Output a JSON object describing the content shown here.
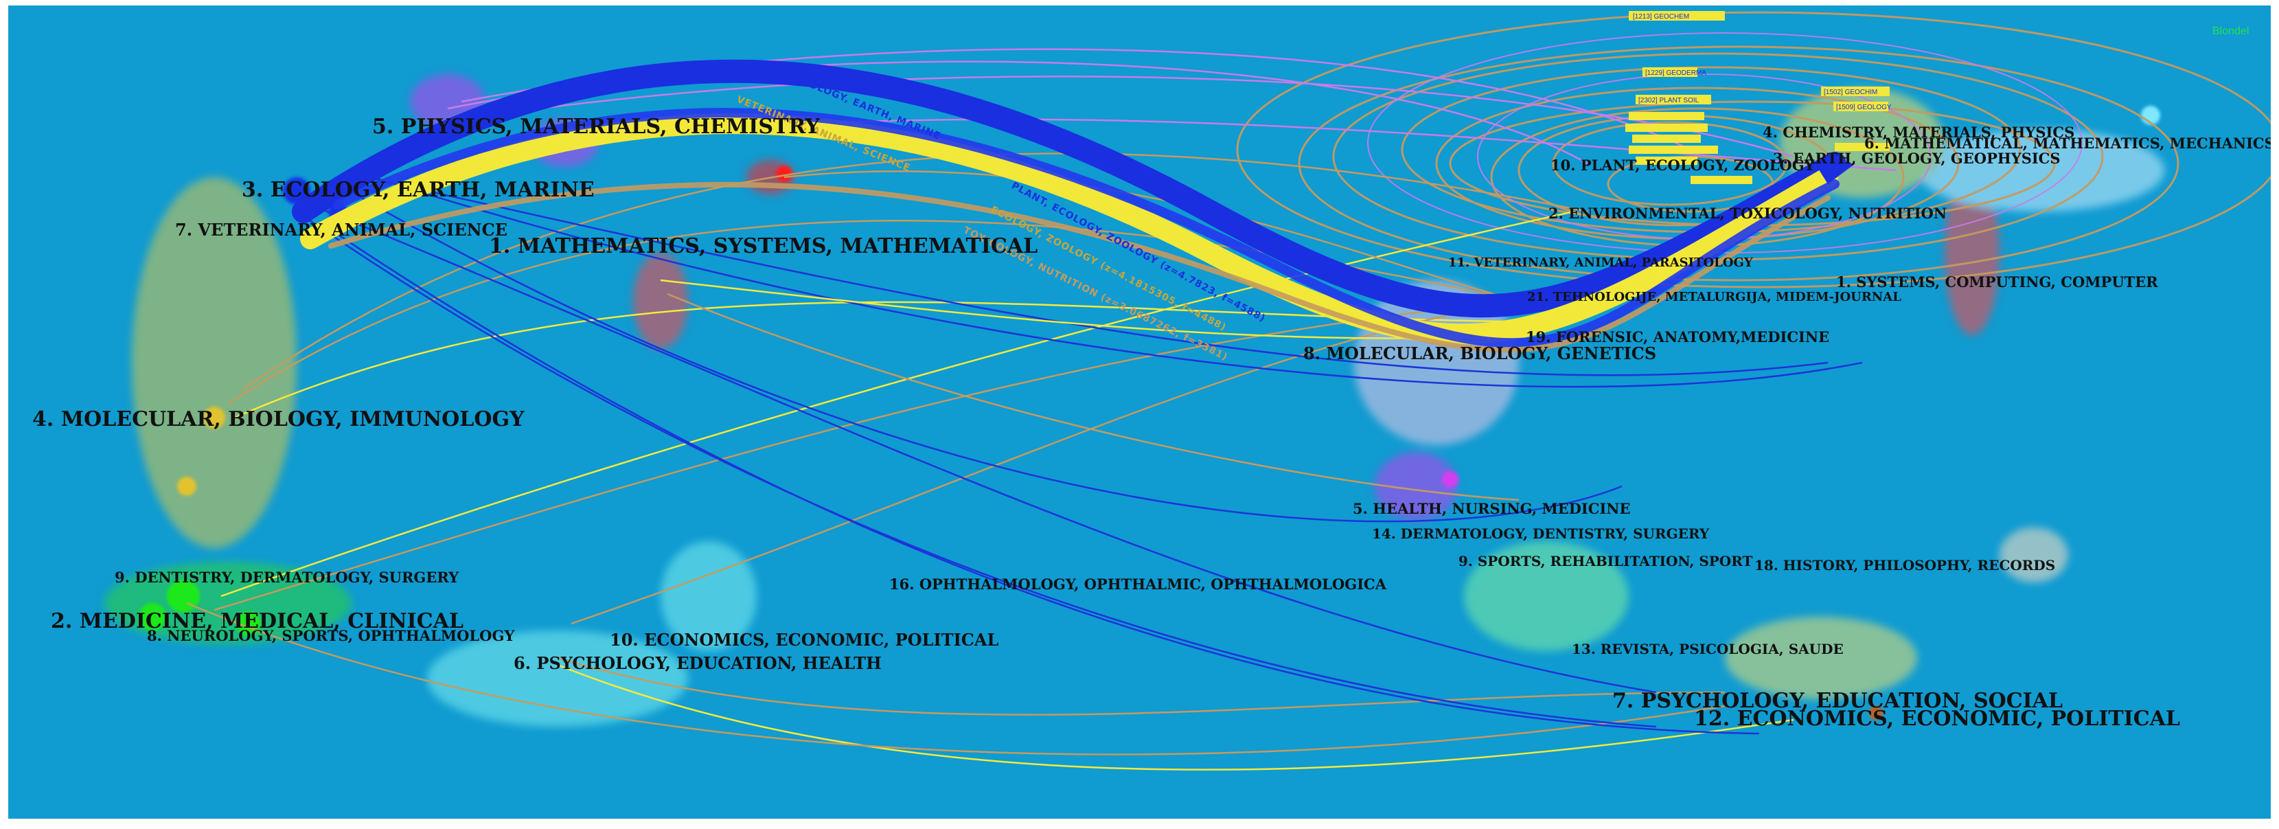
{
  "algorithm_label": "Blondel",
  "colors": {
    "background": "#109bd1",
    "main_flow_blue": "#1a2fe0",
    "main_flow_yellow": "#f2e83a",
    "thin_link_tan": "#c79a5e",
    "thin_link_blue": "#1c34d8",
    "thin_link_yellow": "#f6ea3c",
    "thin_link_magenta": "#c77ce8",
    "label_text": "#111111",
    "algorithm_text": "#20e44c"
  },
  "left_clusters": [
    {
      "id": "5",
      "label": "5. PHYSICS, MATERIALS, CHEMISTRY"
    },
    {
      "id": "3",
      "label": "3. ECOLOGY, EARTH, MARINE"
    },
    {
      "id": "7",
      "label": "7. VETERINARY, ANIMAL, SCIENCE"
    },
    {
      "id": "1",
      "label": "1. MATHEMATICS, SYSTEMS, MATHEMATICAL"
    },
    {
      "id": "4",
      "label": "4. MOLECULAR, BIOLOGY, IMMUNOLOGY"
    },
    {
      "id": "9",
      "label": "9. DENTISTRY, DERMATOLOGY, SURGERY"
    },
    {
      "id": "2",
      "label": "2. MEDICINE, MEDICAL, CLINICAL"
    },
    {
      "id": "8",
      "label": "8. NEUROLOGY, SPORTS, OPHTHALMOLOGY"
    },
    {
      "id": "10",
      "label": "10. ECONOMICS, ECONOMIC, POLITICAL"
    },
    {
      "id": "6",
      "label": "6. PSYCHOLOGY, EDUCATION, HEALTH"
    },
    {
      "id": "16",
      "label": "16. OPHTHALMOLOGY, OPHTHALMIC, OPHTHALMOLOGICA"
    }
  ],
  "right_clusters": [
    {
      "id": "4",
      "label": "4. CHEMISTRY, MATERIALS, PHYSICS"
    },
    {
      "id": "6",
      "label": "6. MATHEMATICAL, MATHEMATICS, MECHANICS"
    },
    {
      "id": "3",
      "label": "3. EARTH, GEOLOGY, GEOPHYSICS"
    },
    {
      "id": "10",
      "label": "10. PLANT, ECOLOGY, ZOOLOGY"
    },
    {
      "id": "2",
      "label": "2. ENVIRONMENTAL, TOXICOLOGY, NUTRITION"
    },
    {
      "id": "11",
      "label": "11. VETERINARY, ANIMAL, PARASITOLOGY"
    },
    {
      "id": "1",
      "label": "1. SYSTEMS, COMPUTING, COMPUTER"
    },
    {
      "id": "21",
      "label": "21. TEHNOLOGIJE, METALURGIJA, MIDEM-JOURNAL"
    },
    {
      "id": "19",
      "label": "19. FORENSIC, ANATOMY,MEDICINE"
    },
    {
      "id": "8",
      "label": "8. MOLECULAR, BIOLOGY, GENETICS"
    },
    {
      "id": "5",
      "label": "5. HEALTH, NURSING, MEDICINE"
    },
    {
      "id": "14",
      "label": "14. DERMATOLOGY, DENTISTRY, SURGERY"
    },
    {
      "id": "9",
      "label": "9. SPORTS, REHABILITATION, SPORT"
    },
    {
      "id": "18",
      "label": "18. HISTORY, PHILOSOPHY, RECORDS"
    },
    {
      "id": "13",
      "label": "13. REVISTA, PSICOLOGIA, SAUDE"
    },
    {
      "id": "7",
      "label": "7. PSYCHOLOGY, EDUCATION, SOCIAL"
    },
    {
      "id": "12",
      "label": "12. ECONOMICS, ECONOMIC, POLITICAL"
    }
  ],
  "flow_labels": {
    "blue_upper": "ECOLOGY, EARTH, MARINE",
    "yellow_upper": "VETERINARY, ANIMAL, SCIENCE",
    "blue_lower": "PLANT, ECOLOGY, ZOOLOGY (z=4.7823, f=4588)",
    "yellow_lower": "ECOLOGY, ZOOLOGY (z=4.1815305, f=4488)",
    "tan_lower": "TOXICOLOGY, NUTRITION (z=3.0687262, f=3381)"
  },
  "ring_tags": [
    "[1213] GEOCHEM",
    "[1229] GEODERMA",
    "[2302] PLANT SOIL",
    "[1502] GEOCHIM",
    "[1509] GEOLOGY"
  ]
}
